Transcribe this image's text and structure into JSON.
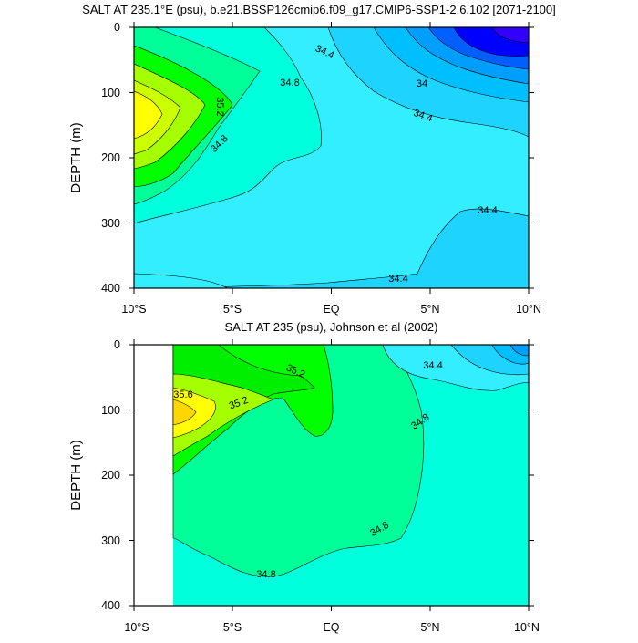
{
  "chart_data": [
    {
      "type": "contour",
      "title": "SALT AT 235.1°E (psu), b.e21.BSSP126cmip6.f09_g17.CMIP6-SSP1-2.6.102 [2071-2100]",
      "ylabel": "DEPTH (m)",
      "xlabel": "",
      "x_ticks": [
        "10°S",
        "5°S",
        "EQ",
        "5°N",
        "10°N"
      ],
      "y_ticks": [
        "0",
        "100",
        "200",
        "300",
        "400"
      ],
      "xlim": [
        -10,
        10
      ],
      "ylim": [
        400,
        0
      ],
      "contour_labels": [
        {
          "value": "34.4",
          "lat": 4.5,
          "depth": 35
        },
        {
          "value": "34.8",
          "lat": 3.5,
          "depth": 85
        },
        {
          "value": "35.2",
          "lat": 4.5,
          "depth": 118
        },
        {
          "value": "34.8",
          "lat": 4.3,
          "depth": 178
        },
        {
          "value": "34",
          "lat": 5.1,
          "depth": 86
        },
        {
          "value": "34.4",
          "lat": 5.6,
          "depth": 137
        },
        {
          "value": "34.4",
          "lat": 6.3,
          "depth": 280
        },
        {
          "value": "34.4",
          "lat": 5.9,
          "depth": 385
        }
      ],
      "colors": [
        "#d2691e",
        "#ffd700",
        "#ffff00",
        "#a6ff00",
        "#00ff00",
        "#00ed00",
        "#00ff99",
        "#00ffdd",
        "#1fd3ff",
        "#33eeff",
        "#00bfff",
        "#009fff",
        "#0060ff",
        "#0000ff",
        "#3300ff"
      ]
    },
    {
      "type": "contour",
      "title": "SALT AT 235 (psu), Johnson et al (2002)",
      "ylabel": "DEPTH (m)",
      "xlabel": "",
      "x_ticks": [
        "10°S",
        "5°S",
        "EQ",
        "5°N",
        "10°N"
      ],
      "y_ticks": [
        "0",
        "100",
        "200",
        "300",
        "400"
      ],
      "xlim": [
        -10,
        10
      ],
      "ylim": [
        400,
        0
      ],
      "contour_labels": [
        {
          "value": "35.2",
          "lat": -3.2,
          "depth": 35
        },
        {
          "value": "35.6",
          "lat": -8.3,
          "depth": 75
        },
        {
          "value": "35.2",
          "lat": -4.4,
          "depth": 85
        },
        {
          "value": "34.4",
          "lat": 5.0,
          "depth": 30
        },
        {
          "value": "34.8",
          "lat": 4.8,
          "depth": 120
        },
        {
          "value": "34.8",
          "lat": 2.5,
          "depth": 285
        },
        {
          "value": "34.8",
          "lat": -6.7,
          "depth": 345
        }
      ]
    }
  ]
}
